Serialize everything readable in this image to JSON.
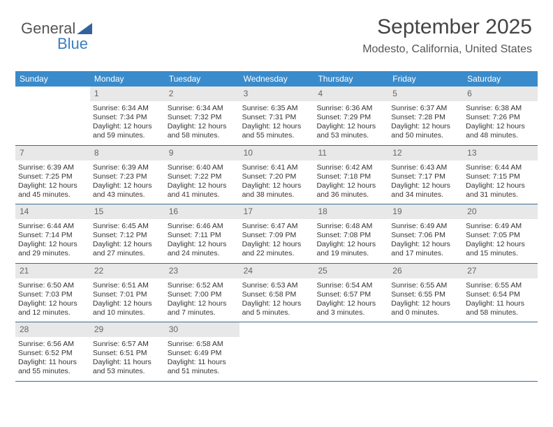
{
  "brand": {
    "name_a": "General",
    "name_b": "Blue",
    "tri_color": "#33639f"
  },
  "title": "September 2025",
  "location": "Modesto, California, United States",
  "colors": {
    "header_bg": "#3a8bcb",
    "week_border": "#3a6b95",
    "daybar": "#e8e8e8"
  },
  "day_names": [
    "Sunday",
    "Monday",
    "Tuesday",
    "Wednesday",
    "Thursday",
    "Friday",
    "Saturday"
  ],
  "weeks": [
    [
      null,
      {
        "n": "1",
        "sr": "Sunrise: 6:34 AM",
        "ss": "Sunset: 7:34 PM",
        "d1": "Daylight: 12 hours",
        "d2": "and 59 minutes."
      },
      {
        "n": "2",
        "sr": "Sunrise: 6:34 AM",
        "ss": "Sunset: 7:32 PM",
        "d1": "Daylight: 12 hours",
        "d2": "and 58 minutes."
      },
      {
        "n": "3",
        "sr": "Sunrise: 6:35 AM",
        "ss": "Sunset: 7:31 PM",
        "d1": "Daylight: 12 hours",
        "d2": "and 55 minutes."
      },
      {
        "n": "4",
        "sr": "Sunrise: 6:36 AM",
        "ss": "Sunset: 7:29 PM",
        "d1": "Daylight: 12 hours",
        "d2": "and 53 minutes."
      },
      {
        "n": "5",
        "sr": "Sunrise: 6:37 AM",
        "ss": "Sunset: 7:28 PM",
        "d1": "Daylight: 12 hours",
        "d2": "and 50 minutes."
      },
      {
        "n": "6",
        "sr": "Sunrise: 6:38 AM",
        "ss": "Sunset: 7:26 PM",
        "d1": "Daylight: 12 hours",
        "d2": "and 48 minutes."
      }
    ],
    [
      {
        "n": "7",
        "sr": "Sunrise: 6:39 AM",
        "ss": "Sunset: 7:25 PM",
        "d1": "Daylight: 12 hours",
        "d2": "and 45 minutes."
      },
      {
        "n": "8",
        "sr": "Sunrise: 6:39 AM",
        "ss": "Sunset: 7:23 PM",
        "d1": "Daylight: 12 hours",
        "d2": "and 43 minutes."
      },
      {
        "n": "9",
        "sr": "Sunrise: 6:40 AM",
        "ss": "Sunset: 7:22 PM",
        "d1": "Daylight: 12 hours",
        "d2": "and 41 minutes."
      },
      {
        "n": "10",
        "sr": "Sunrise: 6:41 AM",
        "ss": "Sunset: 7:20 PM",
        "d1": "Daylight: 12 hours",
        "d2": "and 38 minutes."
      },
      {
        "n": "11",
        "sr": "Sunrise: 6:42 AM",
        "ss": "Sunset: 7:18 PM",
        "d1": "Daylight: 12 hours",
        "d2": "and 36 minutes."
      },
      {
        "n": "12",
        "sr": "Sunrise: 6:43 AM",
        "ss": "Sunset: 7:17 PM",
        "d1": "Daylight: 12 hours",
        "d2": "and 34 minutes."
      },
      {
        "n": "13",
        "sr": "Sunrise: 6:44 AM",
        "ss": "Sunset: 7:15 PM",
        "d1": "Daylight: 12 hours",
        "d2": "and 31 minutes."
      }
    ],
    [
      {
        "n": "14",
        "sr": "Sunrise: 6:44 AM",
        "ss": "Sunset: 7:14 PM",
        "d1": "Daylight: 12 hours",
        "d2": "and 29 minutes."
      },
      {
        "n": "15",
        "sr": "Sunrise: 6:45 AM",
        "ss": "Sunset: 7:12 PM",
        "d1": "Daylight: 12 hours",
        "d2": "and 27 minutes."
      },
      {
        "n": "16",
        "sr": "Sunrise: 6:46 AM",
        "ss": "Sunset: 7:11 PM",
        "d1": "Daylight: 12 hours",
        "d2": "and 24 minutes."
      },
      {
        "n": "17",
        "sr": "Sunrise: 6:47 AM",
        "ss": "Sunset: 7:09 PM",
        "d1": "Daylight: 12 hours",
        "d2": "and 22 minutes."
      },
      {
        "n": "18",
        "sr": "Sunrise: 6:48 AM",
        "ss": "Sunset: 7:08 PM",
        "d1": "Daylight: 12 hours",
        "d2": "and 19 minutes."
      },
      {
        "n": "19",
        "sr": "Sunrise: 6:49 AM",
        "ss": "Sunset: 7:06 PM",
        "d1": "Daylight: 12 hours",
        "d2": "and 17 minutes."
      },
      {
        "n": "20",
        "sr": "Sunrise: 6:49 AM",
        "ss": "Sunset: 7:05 PM",
        "d1": "Daylight: 12 hours",
        "d2": "and 15 minutes."
      }
    ],
    [
      {
        "n": "21",
        "sr": "Sunrise: 6:50 AM",
        "ss": "Sunset: 7:03 PM",
        "d1": "Daylight: 12 hours",
        "d2": "and 12 minutes."
      },
      {
        "n": "22",
        "sr": "Sunrise: 6:51 AM",
        "ss": "Sunset: 7:01 PM",
        "d1": "Daylight: 12 hours",
        "d2": "and 10 minutes."
      },
      {
        "n": "23",
        "sr": "Sunrise: 6:52 AM",
        "ss": "Sunset: 7:00 PM",
        "d1": "Daylight: 12 hours",
        "d2": "and 7 minutes."
      },
      {
        "n": "24",
        "sr": "Sunrise: 6:53 AM",
        "ss": "Sunset: 6:58 PM",
        "d1": "Daylight: 12 hours",
        "d2": "and 5 minutes."
      },
      {
        "n": "25",
        "sr": "Sunrise: 6:54 AM",
        "ss": "Sunset: 6:57 PM",
        "d1": "Daylight: 12 hours",
        "d2": "and 3 minutes."
      },
      {
        "n": "26",
        "sr": "Sunrise: 6:55 AM",
        "ss": "Sunset: 6:55 PM",
        "d1": "Daylight: 12 hours",
        "d2": "and 0 minutes."
      },
      {
        "n": "27",
        "sr": "Sunrise: 6:55 AM",
        "ss": "Sunset: 6:54 PM",
        "d1": "Daylight: 11 hours",
        "d2": "and 58 minutes."
      }
    ],
    [
      {
        "n": "28",
        "sr": "Sunrise: 6:56 AM",
        "ss": "Sunset: 6:52 PM",
        "d1": "Daylight: 11 hours",
        "d2": "and 55 minutes."
      },
      {
        "n": "29",
        "sr": "Sunrise: 6:57 AM",
        "ss": "Sunset: 6:51 PM",
        "d1": "Daylight: 11 hours",
        "d2": "and 53 minutes."
      },
      {
        "n": "30",
        "sr": "Sunrise: 6:58 AM",
        "ss": "Sunset: 6:49 PM",
        "d1": "Daylight: 11 hours",
        "d2": "and 51 minutes."
      },
      null,
      null,
      null,
      null
    ]
  ]
}
